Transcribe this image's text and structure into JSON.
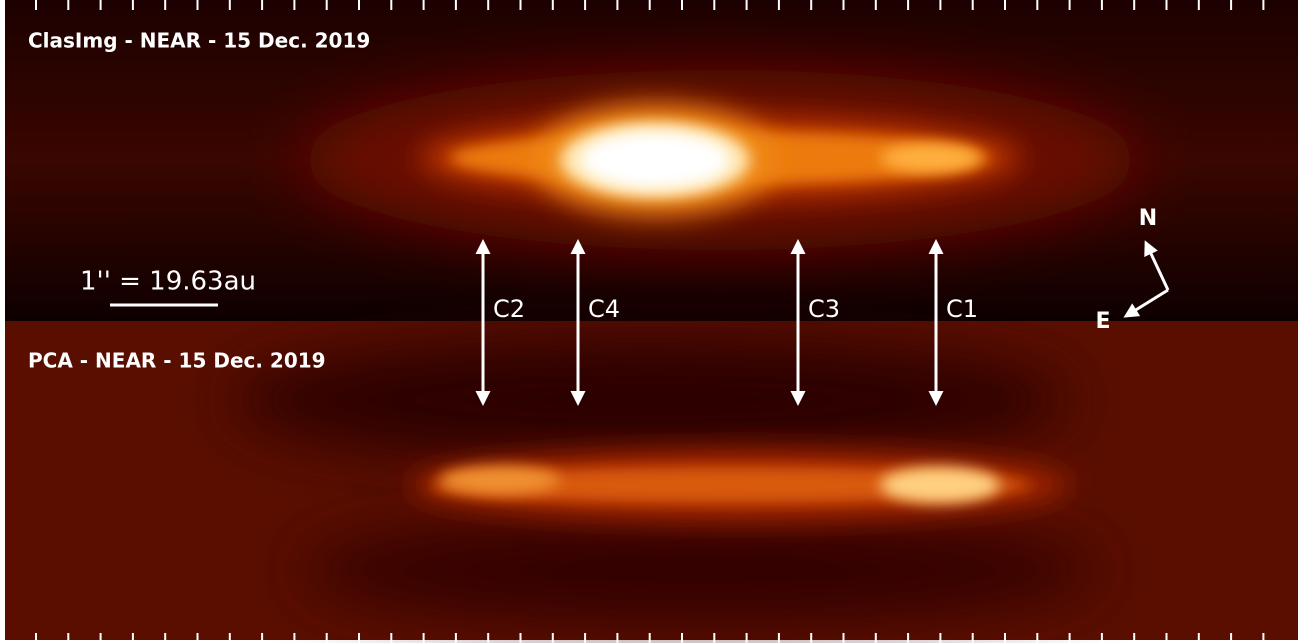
{
  "panels": {
    "top": {
      "label": "ClasImg - NEAR - 15 Dec. 2019"
    },
    "bottom": {
      "label": "PCA - NEAR - 15 Dec. 2019"
    }
  },
  "scale_bar": {
    "label": "1'' = 19.63au"
  },
  "features": [
    {
      "label": "C2"
    },
    {
      "label": "C4"
    },
    {
      "label": "C3"
    },
    {
      "label": "C1"
    }
  ],
  "compass": {
    "north": "N",
    "east": "E"
  }
}
